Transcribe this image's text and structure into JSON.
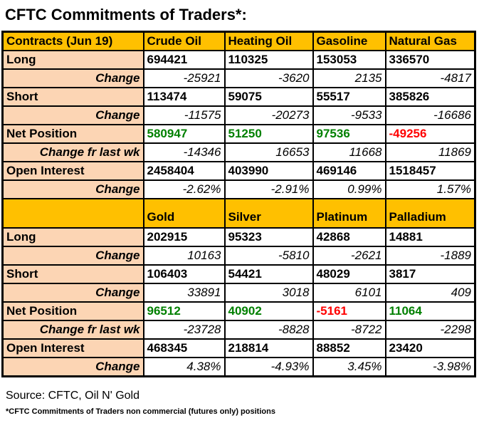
{
  "title": "CFTC Commitments of Traders*:",
  "source": "Source: CFTC, Oil N' Gold",
  "footnote": "*CFTC Commitments of Traders non commercial (futures only) positions",
  "colors": {
    "header_bg": "#FFC000",
    "label_bg": "#FCD5B4",
    "positive": "#008000",
    "negative": "#FF0000"
  },
  "table": {
    "sections": [
      {
        "headers": [
          "Contracts (Jun 19)",
          "Crude Oil",
          "Heating Oil",
          "Gasoline",
          "Natural Gas"
        ],
        "rows": [
          {
            "label": "Long",
            "type": "value",
            "values": [
              "694421",
              "110325",
              "153053",
              "336570"
            ]
          },
          {
            "label": "Change",
            "type": "change",
            "values": [
              "-25921",
              "-3620",
              "2135",
              "-4817"
            ]
          },
          {
            "label": "Short",
            "type": "value",
            "values": [
              "113474",
              "59075",
              "55517",
              "385826"
            ]
          },
          {
            "label": "Change",
            "type": "change",
            "values": [
              "-11575",
              "-20273",
              "-9533",
              "-16686"
            ]
          },
          {
            "label": "Net Position",
            "type": "net",
            "values": [
              "580947",
              "51250",
              "97536",
              "-49256"
            ]
          },
          {
            "label": "Change fr last wk",
            "type": "change",
            "values": [
              "-14346",
              "16653",
              "11668",
              "11869"
            ]
          },
          {
            "label": "Open Interest",
            "type": "value",
            "values": [
              "2458404",
              "403990",
              "469146",
              "1518457"
            ]
          },
          {
            "label": "Change",
            "type": "change",
            "values": [
              "-2.62%",
              "-2.91%",
              "0.99%",
              "1.57%"
            ]
          }
        ]
      },
      {
        "headers": [
          "",
          "Gold",
          "Silver",
          "Platinum",
          "Palladium"
        ],
        "rows": [
          {
            "label": "Long",
            "type": "value",
            "values": [
              "202915",
              "95323",
              "42868",
              "14881"
            ]
          },
          {
            "label": "Change",
            "type": "change",
            "values": [
              "10163",
              "-5810",
              "-2621",
              "-1889"
            ]
          },
          {
            "label": "Short",
            "type": "value",
            "values": [
              "106403",
              "54421",
              "48029",
              "3817"
            ]
          },
          {
            "label": "Change",
            "type": "change",
            "values": [
              "33891",
              "3018",
              "6101",
              "409"
            ]
          },
          {
            "label": "Net Position",
            "type": "net",
            "values": [
              "96512",
              "40902",
              "-5161",
              "11064"
            ]
          },
          {
            "label": "Change fr last wk",
            "type": "change",
            "values": [
              "-23728",
              "-8828",
              "-8722",
              "-2298"
            ]
          },
          {
            "label": "Open Interest",
            "type": "value",
            "values": [
              "468345",
              "218814",
              "88852",
              "23420"
            ]
          },
          {
            "label": "Change",
            "type": "change",
            "values": [
              "4.38%",
              "-4.93%",
              "3.45%",
              "-3.98%"
            ]
          }
        ]
      }
    ]
  }
}
